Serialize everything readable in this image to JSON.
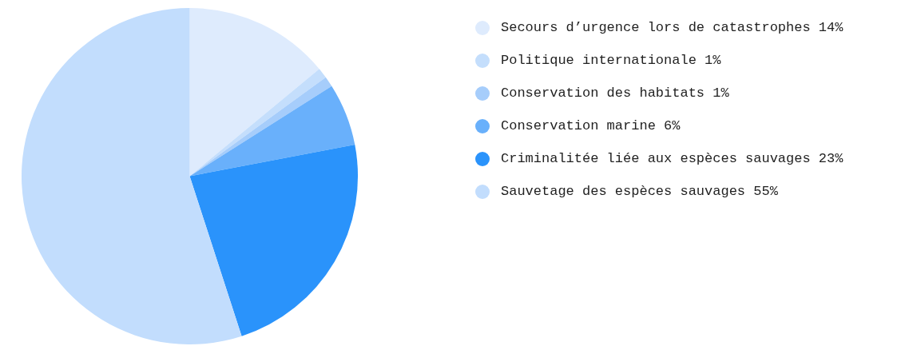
{
  "chart_data": {
    "type": "pie",
    "categories": [
      "Secours d’urgence lors de catastrophes",
      "Politique internationale",
      "Conservation des habitats",
      "Conservation marine",
      "Criminalitée liée aux espèces sauvages",
      "Sauvetage des espèces sauvages"
    ],
    "values": [
      14,
      1,
      1,
      6,
      23,
      55
    ],
    "value_labels": [
      "14%",
      "1%",
      "1%",
      "6%",
      "23%",
      "55%"
    ],
    "colors": [
      "#deebfd",
      "#c4defc",
      "#a6cdfb",
      "#69b0fb",
      "#2a93fb",
      "#c2ddfd"
    ],
    "legend": "right"
  }
}
